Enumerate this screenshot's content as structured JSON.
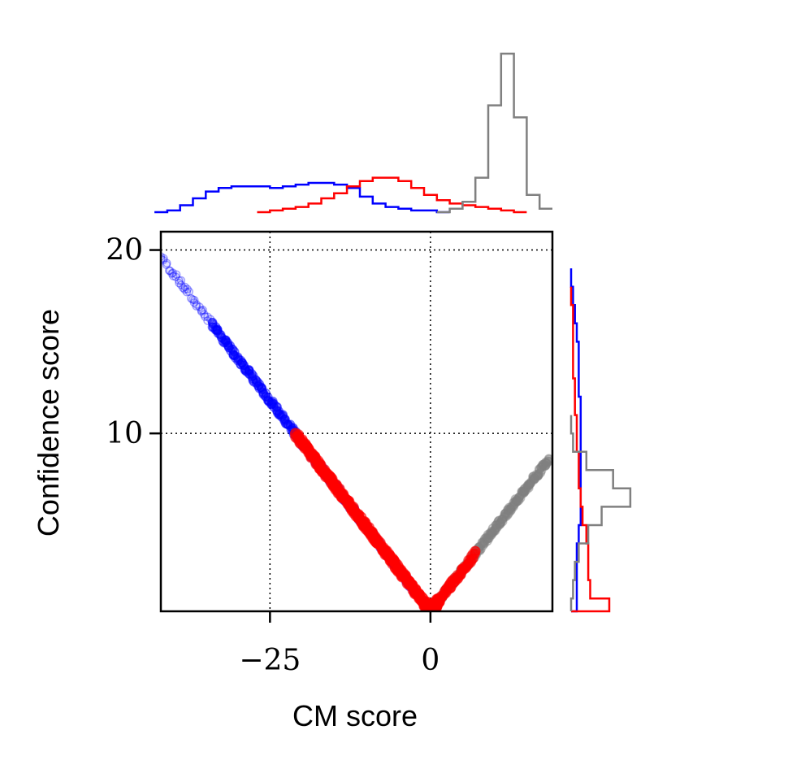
{
  "chart_data": {
    "type": "scatter",
    "xlabel": "CM score",
    "ylabel": "Confidence score",
    "xlim": [
      -42,
      19
    ],
    "ylim": [
      0.3,
      21
    ],
    "xticks": [
      {
        "value": -25,
        "label": "−25"
      },
      {
        "value": 0,
        "label": "0"
      }
    ],
    "yticks": [
      {
        "value": 10,
        "label": "10"
      },
      {
        "value": 20,
        "label": "20"
      }
    ],
    "grid": true,
    "legend": "none",
    "colors": {
      "blue": "#0000ff",
      "red": "#ff0000",
      "gray": "#808080"
    },
    "series": [
      {
        "color": "blue",
        "x_range": [
          -42,
          -2
        ],
        "relation": "y = -0.46*x + 0.3"
      },
      {
        "color": "red",
        "x_range": [
          -21,
          7
        ],
        "relation": "y = -0.46*x + 0.3 (x<0), y = 0.45*x + 0.3 (x>=0)"
      },
      {
        "color": "gray",
        "x_range": [
          0,
          18
        ],
        "relation": "y = 0.45*x + 0.3"
      }
    ],
    "top_histogram": {
      "x_centers": [
        -42,
        -40,
        -38,
        -36,
        -34,
        -32,
        -30,
        -28,
        -26,
        -24,
        -22,
        -20,
        -18,
        -16,
        -14,
        -12,
        -10,
        -8,
        -6,
        -4,
        -2,
        0,
        2,
        4,
        6,
        8,
        10,
        12,
        14,
        16,
        18
      ],
      "blue": [
        0.0,
        0.01,
        0.04,
        0.08,
        0.12,
        0.14,
        0.15,
        0.15,
        0.15,
        0.14,
        0.15,
        0.16,
        0.17,
        0.17,
        0.16,
        0.14,
        0.09,
        0.05,
        0.03,
        0.02,
        0.01,
        0.01,
        0.0,
        0.0,
        0.0,
        0.0,
        0.0,
        0.0,
        0.0,
        0.0,
        0.0
      ],
      "red": [
        0.0,
        0.0,
        0.0,
        0.0,
        0.0,
        0.0,
        0.0,
        0.0,
        0.0,
        0.01,
        0.02,
        0.03,
        0.05,
        0.08,
        0.11,
        0.15,
        0.18,
        0.2,
        0.2,
        0.18,
        0.14,
        0.1,
        0.07,
        0.05,
        0.04,
        0.03,
        0.02,
        0.01,
        0.0,
        0.0,
        0.0
      ],
      "gray": [
        0.0,
        0.0,
        0.0,
        0.0,
        0.0,
        0.0,
        0.0,
        0.0,
        0.0,
        0.0,
        0.0,
        0.0,
        0.0,
        0.0,
        0.0,
        0.0,
        0.0,
        0.0,
        0.0,
        0.0,
        0.0,
        0.0,
        0.0,
        0.02,
        0.06,
        0.2,
        0.62,
        0.92,
        0.55,
        0.1,
        0.02
      ]
    },
    "right_histogram": {
      "y_centers": [
        0.5,
        1.5,
        2.5,
        3.5,
        4.5,
        5.5,
        6.5,
        7.5,
        8.5,
        9.5,
        10.5,
        11.5,
        12.5,
        13.5,
        14.5,
        15.5,
        16.5,
        17.5,
        18.5,
        19.5,
        20.5
      ],
      "blue": [
        0.03,
        0.03,
        0.03,
        0.03,
        0.04,
        0.05,
        0.05,
        0.05,
        0.05,
        0.05,
        0.05,
        0.05,
        0.04,
        0.04,
        0.04,
        0.03,
        0.02,
        0.01,
        0.0,
        0.0,
        0.0
      ],
      "red": [
        0.2,
        0.1,
        0.09,
        0.09,
        0.08,
        0.06,
        0.05,
        0.04,
        0.04,
        0.03,
        0.03,
        0.02,
        0.02,
        0.01,
        0.01,
        0.01,
        0.01,
        0.0,
        0.0,
        0.0,
        0.0
      ],
      "gray": [
        0.0,
        0.01,
        0.02,
        0.04,
        0.09,
        0.16,
        0.31,
        0.22,
        0.08,
        0.01,
        0.0,
        0.0,
        0.0,
        0.0,
        0.0,
        0.0,
        0.0,
        0.0,
        0.0,
        0.0,
        0.0
      ]
    }
  }
}
